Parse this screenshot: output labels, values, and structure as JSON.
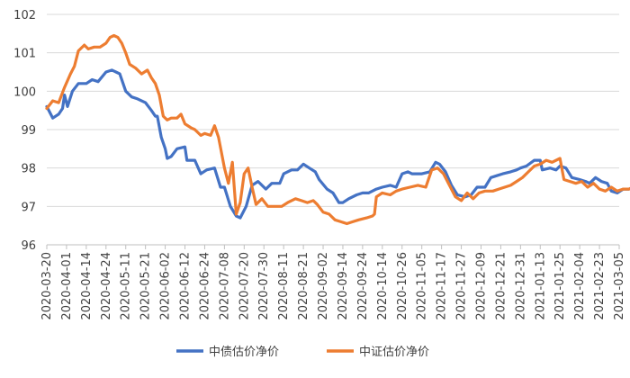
{
  "chart_data": {
    "type": "line",
    "title": "",
    "xlabel": "",
    "ylabel": "",
    "ylim": [
      96,
      102
    ],
    "yticks": [
      96,
      97,
      98,
      99,
      100,
      101,
      102
    ],
    "grid": "horizontal",
    "legend_position": "bottom",
    "xtick_labels": [
      "2020-03-20",
      "2020-04-01",
      "2020-04-14",
      "2020-04-24",
      "2020-05-11",
      "2020-05-21",
      "2020-06-02",
      "2020-06-12",
      "2020-06-24",
      "2020-07-08",
      "2020-07-20",
      "2020-07-30",
      "2020-08-11",
      "2020-08-21",
      "2020-09-02",
      "2020-09-14",
      "2020-09-24",
      "2020-10-14",
      "2020-10-26",
      "2020-11-05",
      "2020-11-17",
      "2020-11-27",
      "2020-12-09",
      "2020-12-21",
      "2020-12-31",
      "2021-01-13",
      "2021-01-25",
      "2021-02-04",
      "2021-02-23",
      "2021-03-05"
    ],
    "series": [
      {
        "name": "中债估价净价",
        "color": "#4472C4",
        "values": [
          [
            0,
            99.6
          ],
          [
            0.3,
            99.3
          ],
          [
            0.6,
            99.4
          ],
          [
            0.8,
            99.55
          ],
          [
            0.9,
            99.9
          ],
          [
            1.05,
            99.6
          ],
          [
            1.3,
            100.0
          ],
          [
            1.6,
            100.2
          ],
          [
            2.0,
            100.2
          ],
          [
            2.3,
            100.3
          ],
          [
            2.6,
            100.25
          ],
          [
            3.0,
            100.5
          ],
          [
            3.3,
            100.55
          ],
          [
            3.5,
            100.5
          ],
          [
            3.7,
            100.45
          ],
          [
            4.0,
            100.0
          ],
          [
            4.3,
            99.85
          ],
          [
            4.6,
            99.8
          ],
          [
            5.0,
            99.7
          ],
          [
            5.3,
            99.5
          ],
          [
            5.5,
            99.35
          ],
          [
            5.6,
            99.35
          ],
          [
            5.8,
            98.8
          ],
          [
            6.0,
            98.5
          ],
          [
            6.1,
            98.25
          ],
          [
            6.3,
            98.3
          ],
          [
            6.6,
            98.5
          ],
          [
            7.0,
            98.55
          ],
          [
            7.1,
            98.2
          ],
          [
            7.5,
            98.2
          ],
          [
            7.8,
            97.85
          ],
          [
            8.1,
            97.95
          ],
          [
            8.5,
            98.0
          ],
          [
            8.8,
            97.5
          ],
          [
            9.0,
            97.5
          ],
          [
            9.3,
            97.0
          ],
          [
            9.6,
            96.75
          ],
          [
            9.8,
            96.7
          ],
          [
            10.1,
            97.0
          ],
          [
            10.4,
            97.55
          ],
          [
            10.7,
            97.65
          ],
          [
            11.1,
            97.45
          ],
          [
            11.4,
            97.6
          ],
          [
            11.8,
            97.6
          ],
          [
            12.0,
            97.85
          ],
          [
            12.4,
            97.95
          ],
          [
            12.7,
            97.95
          ],
          [
            13.0,
            98.1
          ],
          [
            13.3,
            98.0
          ],
          [
            13.6,
            97.9
          ],
          [
            13.8,
            97.7
          ],
          [
            14.2,
            97.45
          ],
          [
            14.5,
            97.35
          ],
          [
            14.8,
            97.1
          ],
          [
            15.0,
            97.1
          ],
          [
            15.3,
            97.2
          ],
          [
            15.7,
            97.3
          ],
          [
            16.0,
            97.35
          ],
          [
            16.3,
            97.35
          ],
          [
            16.7,
            97.45
          ],
          [
            17.0,
            97.5
          ],
          [
            17.4,
            97.55
          ],
          [
            17.7,
            97.5
          ],
          [
            18.0,
            97.85
          ],
          [
            18.3,
            97.9
          ],
          [
            18.5,
            97.85
          ],
          [
            18.8,
            97.85
          ],
          [
            19.0,
            97.85
          ],
          [
            19.4,
            97.9
          ],
          [
            19.7,
            98.15
          ],
          [
            19.9,
            98.1
          ],
          [
            20.2,
            97.9
          ],
          [
            20.5,
            97.55
          ],
          [
            20.8,
            97.3
          ],
          [
            21.2,
            97.25
          ],
          [
            21.5,
            97.3
          ],
          [
            21.8,
            97.5
          ],
          [
            22.2,
            97.5
          ],
          [
            22.5,
            97.75
          ],
          [
            22.8,
            97.8
          ],
          [
            23.1,
            97.85
          ],
          [
            23.5,
            97.9
          ],
          [
            23.8,
            97.95
          ],
          [
            24.0,
            98.0
          ],
          [
            24.3,
            98.05
          ],
          [
            24.7,
            98.2
          ],
          [
            25.0,
            98.2
          ],
          [
            25.1,
            97.95
          ],
          [
            25.5,
            98.0
          ],
          [
            25.8,
            97.95
          ],
          [
            26.0,
            98.05
          ],
          [
            26.3,
            98.0
          ],
          [
            26.6,
            97.75
          ],
          [
            27.0,
            97.7
          ],
          [
            27.3,
            97.65
          ],
          [
            27.5,
            97.6
          ],
          [
            27.8,
            97.75
          ],
          [
            28.1,
            97.65
          ],
          [
            28.4,
            97.6
          ],
          [
            28.6,
            97.4
          ],
          [
            28.9,
            97.35
          ],
          [
            29.2,
            97.45
          ],
          [
            29.5,
            97.45
          ],
          [
            29.7,
            97.5
          ]
        ]
      },
      {
        "name": "中证估价净价",
        "color": "#ED7D31",
        "values": [
          [
            0,
            99.55
          ],
          [
            0.3,
            99.75
          ],
          [
            0.6,
            99.7
          ],
          [
            0.9,
            100.1
          ],
          [
            1.2,
            100.45
          ],
          [
            1.4,
            100.65
          ],
          [
            1.6,
            101.05
          ],
          [
            1.9,
            101.2
          ],
          [
            2.1,
            101.1
          ],
          [
            2.4,
            101.15
          ],
          [
            2.7,
            101.15
          ],
          [
            3.0,
            101.25
          ],
          [
            3.2,
            101.4
          ],
          [
            3.4,
            101.45
          ],
          [
            3.6,
            101.4
          ],
          [
            3.8,
            101.25
          ],
          [
            4.0,
            101.0
          ],
          [
            4.2,
            100.7
          ],
          [
            4.5,
            100.6
          ],
          [
            4.8,
            100.45
          ],
          [
            5.1,
            100.55
          ],
          [
            5.3,
            100.35
          ],
          [
            5.5,
            100.2
          ],
          [
            5.7,
            99.9
          ],
          [
            5.9,
            99.35
          ],
          [
            6.1,
            99.25
          ],
          [
            6.3,
            99.3
          ],
          [
            6.6,
            99.3
          ],
          [
            6.8,
            99.4
          ],
          [
            7.0,
            99.15
          ],
          [
            7.3,
            99.05
          ],
          [
            7.5,
            99.0
          ],
          [
            7.8,
            98.85
          ],
          [
            8.0,
            98.9
          ],
          [
            8.3,
            98.85
          ],
          [
            8.5,
            99.1
          ],
          [
            8.7,
            98.8
          ],
          [
            9.0,
            98.0
          ],
          [
            9.2,
            97.6
          ],
          [
            9.4,
            98.15
          ],
          [
            9.6,
            96.8
          ],
          [
            9.8,
            97.1
          ],
          [
            10.0,
            97.85
          ],
          [
            10.2,
            98.0
          ],
          [
            10.4,
            97.5
          ],
          [
            10.6,
            97.05
          ],
          [
            10.9,
            97.2
          ],
          [
            11.2,
            97.0
          ],
          [
            11.6,
            97.0
          ],
          [
            11.9,
            97.0
          ],
          [
            12.2,
            97.1
          ],
          [
            12.6,
            97.2
          ],
          [
            12.9,
            97.15
          ],
          [
            13.2,
            97.1
          ],
          [
            13.5,
            97.15
          ],
          [
            13.7,
            97.05
          ],
          [
            14.0,
            96.85
          ],
          [
            14.3,
            96.8
          ],
          [
            14.6,
            96.65
          ],
          [
            14.9,
            96.6
          ],
          [
            15.2,
            96.55
          ],
          [
            15.5,
            96.6
          ],
          [
            15.8,
            96.65
          ],
          [
            16.2,
            96.7
          ],
          [
            16.5,
            96.75
          ],
          [
            16.6,
            96.8
          ],
          [
            16.7,
            97.25
          ],
          [
            17.0,
            97.35
          ],
          [
            17.4,
            97.3
          ],
          [
            17.7,
            97.4
          ],
          [
            18.0,
            97.45
          ],
          [
            18.4,
            97.5
          ],
          [
            18.8,
            97.55
          ],
          [
            19.2,
            97.5
          ],
          [
            19.5,
            97.95
          ],
          [
            19.8,
            98.0
          ],
          [
            20.1,
            97.85
          ],
          [
            20.4,
            97.55
          ],
          [
            20.7,
            97.25
          ],
          [
            21.0,
            97.15
          ],
          [
            21.3,
            97.35
          ],
          [
            21.6,
            97.2
          ],
          [
            21.9,
            97.35
          ],
          [
            22.2,
            97.4
          ],
          [
            22.6,
            97.4
          ],
          [
            22.9,
            97.45
          ],
          [
            23.2,
            97.5
          ],
          [
            23.5,
            97.55
          ],
          [
            23.8,
            97.65
          ],
          [
            24.1,
            97.75
          ],
          [
            24.4,
            97.9
          ],
          [
            24.7,
            98.05
          ],
          [
            25.0,
            98.1
          ],
          [
            25.3,
            98.2
          ],
          [
            25.6,
            98.15
          ],
          [
            26.0,
            98.25
          ],
          [
            26.2,
            97.7
          ],
          [
            26.5,
            97.65
          ],
          [
            26.8,
            97.6
          ],
          [
            27.1,
            97.65
          ],
          [
            27.4,
            97.5
          ],
          [
            27.7,
            97.6
          ],
          [
            28.0,
            97.45
          ],
          [
            28.3,
            97.4
          ],
          [
            28.6,
            97.5
          ],
          [
            28.9,
            97.4
          ],
          [
            29.2,
            97.45
          ],
          [
            29.5,
            97.45
          ],
          [
            29.7,
            97.5
          ]
        ]
      }
    ]
  }
}
